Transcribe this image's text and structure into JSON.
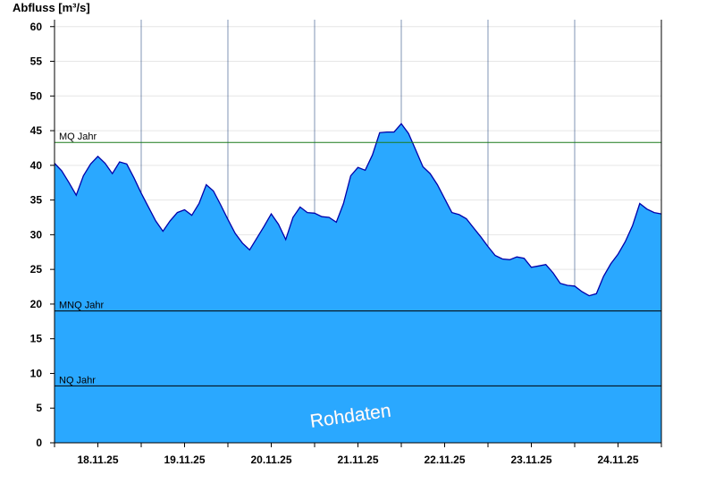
{
  "chart_data": {
    "type": "area",
    "title": "",
    "ylabel": "Abfluss [m³/s]",
    "xlabel": "",
    "ylim": [
      0,
      61
    ],
    "yticks": [
      0,
      5,
      10,
      15,
      20,
      25,
      30,
      35,
      40,
      45,
      50,
      55,
      60
    ],
    "x_start": "18.11.25 00:00",
    "x_end": "25.11.25 00:00",
    "xtick_labels": [
      "18.11.25",
      "19.11.25",
      "20.11.25",
      "21.11.25",
      "22.11.25",
      "23.11.25",
      "24.11.25"
    ],
    "grid": true,
    "colors": {
      "fill": "#2aa8ff",
      "line": "#0000aa",
      "mq_line": "#1a7a1a",
      "ref_line": "#000000"
    },
    "reference_lines": [
      {
        "label": "MQ Jahr",
        "value": 43.3
      },
      {
        "label": "MNQ Jahr",
        "value": 19.0
      },
      {
        "label": "NQ Jahr",
        "value": 8.2
      }
    ],
    "watermark": "Rohdaten",
    "series": [
      {
        "x": [
          "18.11.25 00:00",
          "18.11.25 02:00",
          "18.11.25 04:00",
          "18.11.25 06:00",
          "18.11.25 08:00",
          "18.11.25 10:00",
          "18.11.25 12:00",
          "18.11.25 14:00",
          "18.11.25 16:00",
          "18.11.25 18:00",
          "18.11.25 20:00",
          "18.11.25 22:00",
          "19.11.25 00:00",
          "19.11.25 02:00",
          "19.11.25 04:00",
          "19.11.25 06:00",
          "19.11.25 08:00",
          "19.11.25 10:00",
          "19.11.25 12:00",
          "19.11.25 14:00",
          "19.11.25 16:00",
          "19.11.25 18:00",
          "19.11.25 20:00",
          "19.11.25 22:00",
          "20.11.25 00:00",
          "20.11.25 02:00",
          "20.11.25 04:00",
          "20.11.25 06:00",
          "20.11.25 08:00",
          "20.11.25 10:00",
          "20.11.25 12:00",
          "20.11.25 14:00",
          "20.11.25 16:00",
          "20.11.25 18:00",
          "20.11.25 20:00",
          "20.11.25 22:00",
          "21.11.25 00:00",
          "21.11.25 02:00",
          "21.11.25 04:00",
          "21.11.25 06:00",
          "21.11.25 08:00",
          "21.11.25 10:00",
          "21.11.25 12:00",
          "21.11.25 14:00",
          "21.11.25 16:00",
          "21.11.25 18:00",
          "21.11.25 20:00",
          "21.11.25 22:00",
          "22.11.25 00:00",
          "22.11.25 02:00",
          "22.11.25 04:00",
          "22.11.25 06:00",
          "22.11.25 08:00",
          "22.11.25 10:00",
          "22.11.25 12:00",
          "22.11.25 14:00",
          "22.11.25 16:00",
          "22.11.25 18:00",
          "22.11.25 20:00",
          "22.11.25 22:00",
          "23.11.25 00:00",
          "23.11.25 02:00",
          "23.11.25 04:00",
          "23.11.25 06:00",
          "23.11.25 08:00",
          "23.11.25 10:00",
          "23.11.25 12:00",
          "23.11.25 14:00",
          "23.11.25 16:00",
          "23.11.25 18:00",
          "23.11.25 20:00",
          "23.11.25 22:00",
          "24.11.25 00:00",
          "24.11.25 02:00",
          "24.11.25 04:00",
          "24.11.25 06:00",
          "24.11.25 08:00",
          "24.11.25 10:00",
          "24.11.25 12:00",
          "24.11.25 14:00",
          "24.11.25 16:00",
          "24.11.25 18:00",
          "24.11.25 20:00",
          "24.11.25 22:00",
          "25.11.25 00:00"
        ],
        "y": [
          40.3,
          39.2,
          37.5,
          35.7,
          38.5,
          40.2,
          41.3,
          40.3,
          38.8,
          40.5,
          40.2,
          38.2,
          36.0,
          34.0,
          32.0,
          30.5,
          32.0,
          33.2,
          33.6,
          32.8,
          34.5,
          37.2,
          36.3,
          34.3,
          32.2,
          30.2,
          28.8,
          27.8,
          29.5,
          31.2,
          33.0,
          31.5,
          29.3,
          32.5,
          34.0,
          33.2,
          33.1,
          32.6,
          32.5,
          31.8,
          34.5,
          38.5,
          39.7,
          39.3,
          41.5,
          44.7,
          44.8,
          44.8,
          46.0,
          44.6,
          42.2,
          39.8,
          38.8,
          37.2,
          35.2,
          33.2,
          32.9,
          32.3,
          31.0,
          29.7,
          28.3,
          27.0,
          26.5,
          26.4,
          26.8,
          26.6,
          25.3,
          25.5,
          25.7,
          24.5,
          23.0,
          22.7,
          22.6,
          21.8,
          21.2,
          21.5,
          24.0,
          25.8,
          27.2,
          29.0,
          31.3,
          34.5,
          33.7,
          33.2,
          33.0
        ]
      }
    ]
  }
}
